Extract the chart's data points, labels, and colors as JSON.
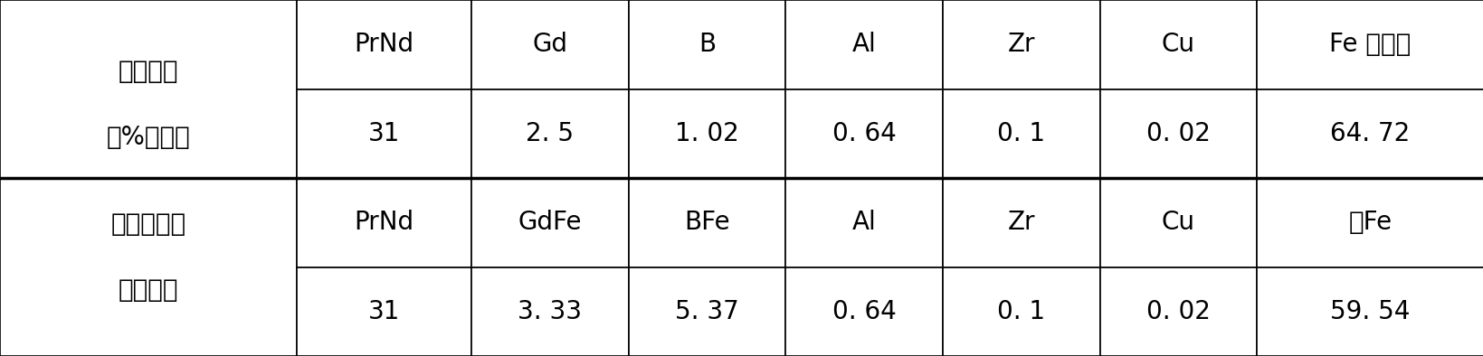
{
  "col_headers": [
    "PrNd",
    "Gd",
    "B",
    "Al",
    "Zr",
    "Cu",
    "Fe 及杂质"
  ],
  "row1_label_top": "成分配比",
  "row1_label_bot": "（%重量）",
  "row1_values": [
    "31",
    "2. 5",
    "1. 02",
    "0. 64",
    "0. 1",
    "0. 02",
    "64. 72"
  ],
  "row2_label_top": "所需原材料",
  "row2_label_bot": "（公斤）",
  "row2_headers": [
    "PrNd",
    "GdFe",
    "BFe",
    "Al",
    "Zr",
    "Cu",
    "统Fe"
  ],
  "row2_values": [
    "31",
    "3. 33",
    "5. 37",
    "0. 64",
    "0. 1",
    "0. 02",
    "59. 54"
  ],
  "background": "#ffffff",
  "border_color": "#000000",
  "font_size": 20,
  "fig_width": 16.4,
  "fig_height": 3.94
}
